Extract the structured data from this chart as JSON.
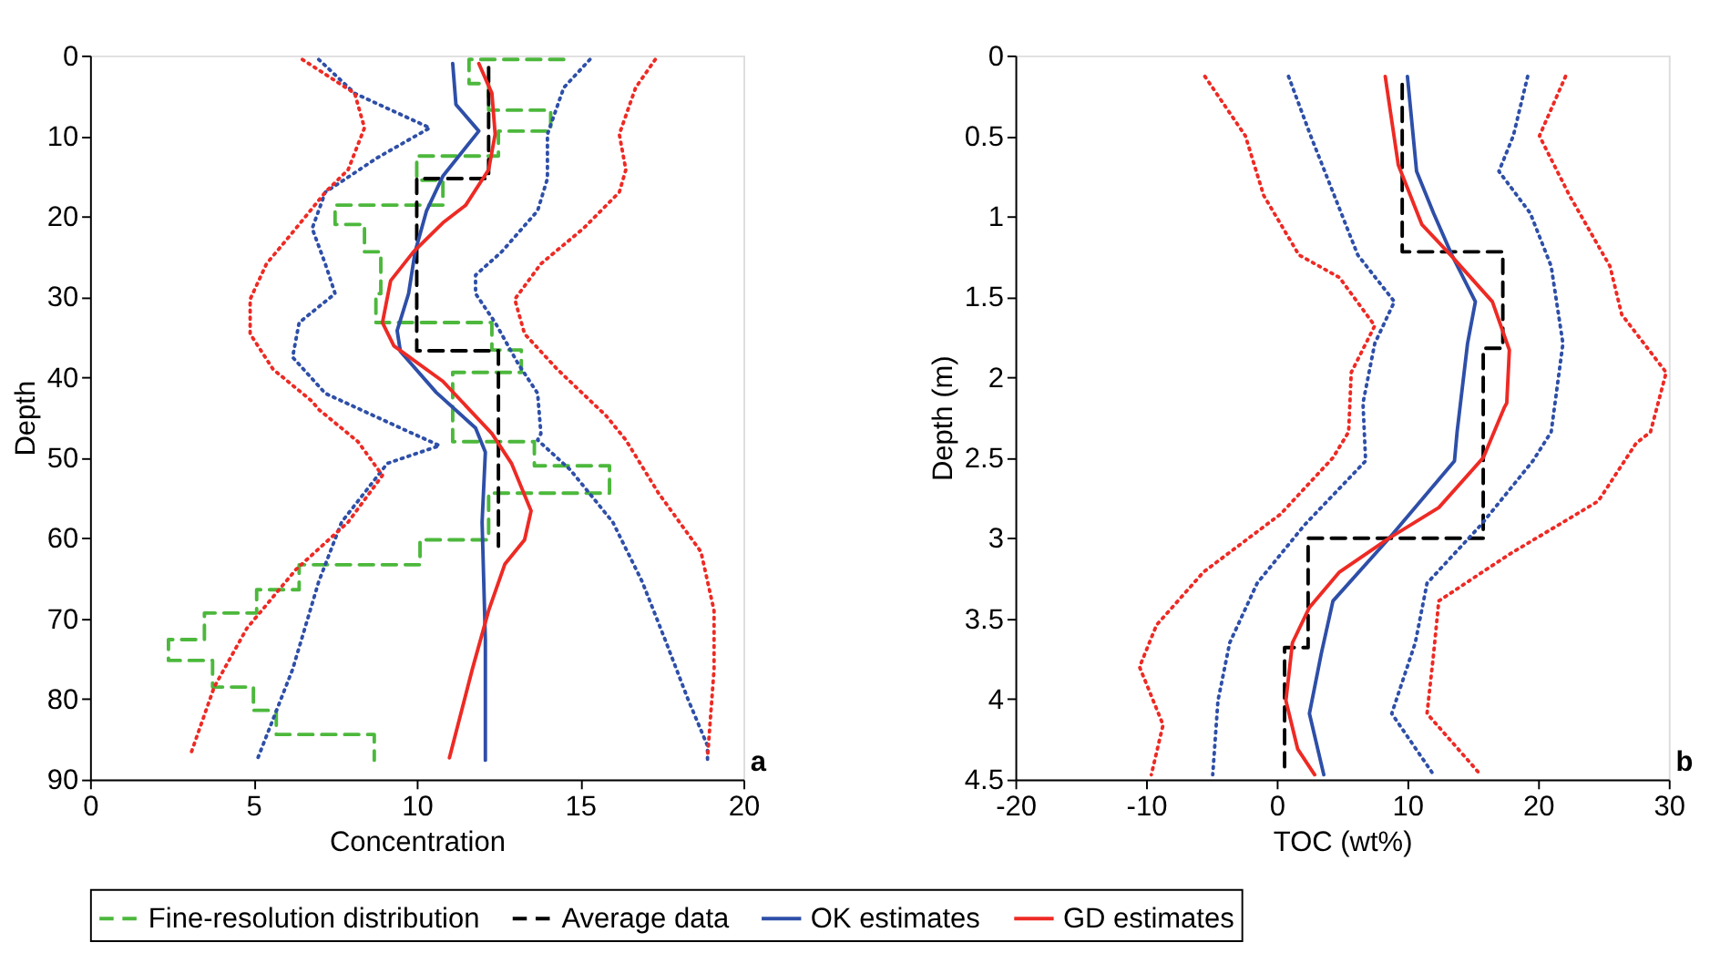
{
  "chart_data": [
    {
      "type": "line",
      "xlabel": "Concentration",
      "ylabel": "Depth",
      "xlim": [
        0,
        20
      ],
      "ylim": [
        90,
        0
      ],
      "xticks": [
        0,
        5,
        10,
        15,
        20
      ],
      "yticks": [
        0,
        10,
        20,
        30,
        40,
        50,
        60,
        70,
        80,
        90
      ],
      "grid": false,
      "legend": "bottom",
      "annotations": [
        "a"
      ],
      "series": [
        {
          "name": "Fine-resolution distribution",
          "color": "#4cb83c",
          "line_style": "dashed",
          "x": [
            14.5,
            11.6,
            11.6,
            12.2,
            12.2,
            14.1,
            14.1,
            12.5,
            12.5,
            10.0,
            10.0,
            10.8,
            10.8,
            7.5,
            7.5,
            8.4,
            8.4,
            8.9,
            8.9,
            8.75,
            8.75,
            12.3,
            12.3,
            13.2,
            13.2,
            11.1,
            11.1,
            11.5,
            11.5,
            13.6,
            13.6,
            15.9,
            15.9,
            12.2,
            12.2,
            10.1,
            10.1,
            6.4,
            6.4,
            5.1,
            5.1,
            3.5,
            3.5,
            2.4,
            2.4,
            3.75,
            3.75,
            5.0,
            5.0,
            5.7,
            5.7,
            8.7,
            8.7
          ],
          "values": [
            0.5,
            0.5,
            3.5,
            3.5,
            6.8,
            6.8,
            9.4,
            9.4,
            12.5,
            12.5,
            15.5,
            15.5,
            18.6,
            18.6,
            21.0,
            21.0,
            24.4,
            24.4,
            29.6,
            29.6,
            33.2,
            33.2,
            36.6,
            36.6,
            39.4,
            39.4,
            48.0,
            48.0,
            48.0,
            48.0,
            51.0,
            51.0,
            54.4,
            54.4,
            60.2,
            60.2,
            63.3,
            63.3,
            66.4,
            66.4,
            69.3,
            69.3,
            72.6,
            72.6,
            75.2,
            75.2,
            78.5,
            78.5,
            81.4,
            81.4,
            84.4,
            84.4,
            87.6
          ]
        },
        {
          "name": "Average data",
          "color": "#000000",
          "line_style": "dashed",
          "x": [
            12.2,
            12.2,
            10.0,
            10.0,
            12.5,
            12.5
          ],
          "values": [
            1.5,
            15.3,
            15.3,
            36.7,
            36.7,
            61
          ]
        },
        {
          "name": "OK estimates",
          "color": "#2e4fa8",
          "line_style": "solid",
          "x": [
            11.1,
            11.2,
            11.9,
            10.8,
            10.3,
            9.95,
            9.75,
            9.4,
            9.5,
            10.6,
            11.8,
            12.1,
            12.0,
            12.1,
            12.1
          ],
          "values": [
            1,
            6.1,
            9.4,
            15,
            19.3,
            24.4,
            29.6,
            34.2,
            36.8,
            41.9,
            46.3,
            49.3,
            58,
            72.6,
            87.6
          ]
        },
        {
          "name": "GD estimates",
          "color": "#ee2a24",
          "line_style": "solid",
          "x": [
            11.9,
            12.3,
            12.4,
            12.2,
            11.5,
            10.8,
            9.9,
            9.2,
            8.95,
            9.3,
            10.8,
            12.3,
            12.9,
            13.5,
            13.3,
            12.7,
            12.2,
            11.7,
            11.0
          ],
          "values": [
            1,
            4.7,
            9.8,
            14.2,
            18.6,
            20.8,
            24.4,
            28,
            33.2,
            36.1,
            40.5,
            47,
            50.7,
            56.6,
            60.2,
            63.2,
            69,
            76.3,
            87.3
          ]
        },
        {
          "color": "#2e4fa8",
          "line_style": "dotted",
          "x": [
            7.0,
            8.1,
            10.4,
            8.8,
            7.2,
            6.8,
            7.2,
            7.5,
            6.4,
            6.2,
            7.2,
            9.5,
            10.7,
            9.1,
            7.7,
            7.0,
            6.2,
            5.1
          ],
          "values": [
            0.5,
            4.7,
            9,
            12.7,
            17,
            21.5,
            25.9,
            29.6,
            33.2,
            37.5,
            42,
            46.3,
            48.5,
            50.7,
            58,
            65.4,
            76.3,
            87.7
          ]
        },
        {
          "color": "#2e4fa8",
          "line_style": "dotted",
          "x": [
            15.3,
            14.5,
            14.0,
            14.0,
            13.7,
            12.6,
            11.8,
            11.8,
            12.4,
            13.1,
            13.7,
            13.8,
            13.7,
            14.7,
            16.0,
            16.9,
            17.6,
            18.3,
            18.9,
            18.9
          ],
          "values": [
            0.5,
            4,
            9.8,
            15.3,
            19.3,
            24.4,
            27.3,
            29.6,
            33.2,
            38.3,
            42,
            47,
            47.8,
            51.5,
            58,
            65.4,
            72.6,
            80,
            85.8,
            87.7
          ]
        },
        {
          "color": "#ee2a24",
          "line_style": "dotted",
          "x": [
            6.5,
            8.1,
            8.4,
            7.9,
            7.2,
            6.3,
            5.4,
            4.9,
            4.9,
            5.6,
            6.8,
            7.0,
            8.2,
            8.95,
            7.9,
            6.3,
            4.8,
            3.8,
            3.1
          ],
          "values": [
            0.5,
            4.7,
            9,
            14.2,
            17,
            21.5,
            25.9,
            30.3,
            34.6,
            39,
            43,
            44,
            48,
            52.2,
            58,
            63.9,
            71.2,
            78.5,
            86.6
          ]
        },
        {
          "color": "#ee2a24",
          "line_style": "dotted",
          "x": [
            17.3,
            16.7,
            16.2,
            16.4,
            16.2,
            15.1,
            13.8,
            13.0,
            13.3,
            14.3,
            15.8,
            16.4,
            17.4,
            18.7,
            19.1,
            19.1,
            18.9
          ],
          "values": [
            0.5,
            4,
            9.8,
            14.2,
            17,
            21.5,
            25.9,
            30.3,
            34.6,
            39,
            44.8,
            47.8,
            54.4,
            61.7,
            69,
            76.3,
            87.3
          ]
        }
      ]
    },
    {
      "type": "line",
      "xlabel": "TOC (wt%)",
      "ylabel": "Depth (m)",
      "xlim": [
        -20,
        30
      ],
      "ylim": [
        4.5,
        0
      ],
      "xticks": [
        -20,
        -10,
        0,
        10,
        20,
        30
      ],
      "yticks": [
        0,
        0.5,
        1,
        1.5,
        2,
        2.5,
        3,
        3.5,
        4,
        4.5
      ],
      "grid": false,
      "legend": "bottom",
      "annotations": [
        "b"
      ],
      "series": [
        {
          "name": "Average data",
          "color": "#000000",
          "line_style": "dashed",
          "x": [
            9.6,
            9.6,
            17.3,
            17.3,
            15.8,
            15.8,
            2.4,
            2.4,
            0.6,
            0.6
          ],
          "values": [
            0.18,
            1.22,
            1.22,
            1.82,
            1.82,
            3.0,
            3.0,
            3.68,
            3.68,
            4.42
          ]
        },
        {
          "name": "OK estimates",
          "color": "#2e4fa8",
          "line_style": "solid",
          "x": [
            10.0,
            10.7,
            12.0,
            13.4,
            15.2,
            14.6,
            13.8,
            13.6,
            8.6,
            4.3,
            3.4,
            2.5,
            3.6
          ],
          "values": [
            0.13,
            0.72,
            0.98,
            1.24,
            1.53,
            1.79,
            2.34,
            2.52,
            3.0,
            3.39,
            3.72,
            4.09,
            4.47
          ]
        },
        {
          "name": "GD estimates",
          "color": "#ee2a24",
          "line_style": "solid",
          "x": [
            8.3,
            9.3,
            11.1,
            13.3,
            16.5,
            17.8,
            17.6,
            17.4,
            15.8,
            12.4,
            8.6,
            4.8,
            2.5,
            1.2,
            0.7,
            1.6,
            2.9
          ],
          "values": [
            0.13,
            0.68,
            1.05,
            1.24,
            1.53,
            1.83,
            2.16,
            2.19,
            2.5,
            2.81,
            3.0,
            3.21,
            3.43,
            3.65,
            4.01,
            4.31,
            4.47
          ]
        },
        {
          "color": "#2e4fa8",
          "line_style": "dotted",
          "x": [
            0.9,
            2.6,
            4.4,
            6.2,
            9.0,
            7.5,
            6.6,
            6.8,
            2.1,
            -1.5,
            -3.6,
            -4.5,
            -4.9
          ],
          "values": [
            0.13,
            0.5,
            0.87,
            1.24,
            1.53,
            1.79,
            2.16,
            2.52,
            2.92,
            3.28,
            3.65,
            4.01,
            4.47
          ]
        },
        {
          "color": "#2e4fa8",
          "line_style": "dotted",
          "x": [
            19.2,
            18.1,
            17.0,
            19.4,
            21.0,
            21.9,
            21.0,
            19.6,
            15.6,
            11.5,
            10.6,
            8.8,
            12.0
          ],
          "values": [
            0.13,
            0.5,
            0.72,
            0.98,
            1.31,
            1.79,
            2.34,
            2.52,
            2.92,
            3.28,
            3.65,
            4.09,
            4.47
          ]
        },
        {
          "color": "#ee2a24",
          "line_style": "dotted",
          "x": [
            -5.5,
            -2.4,
            -1.0,
            1.7,
            4.8,
            7.5,
            5.7,
            5.5,
            4.3,
            0.3,
            -5.6,
            -9.2,
            -10.5,
            -8.7,
            -9.6
          ],
          "values": [
            0.13,
            0.5,
            0.87,
            1.24,
            1.38,
            1.68,
            1.97,
            2.34,
            2.5,
            2.85,
            3.21,
            3.54,
            3.8,
            4.16,
            4.47
          ]
        },
        {
          "color": "#ee2a24",
          "line_style": "dotted",
          "x": [
            22.1,
            20.1,
            22.4,
            25.5,
            26.4,
            29.8,
            28.6,
            27.5,
            24.6,
            17.8,
            12.4,
            12.0,
            11.5,
            15.6
          ],
          "values": [
            0.13,
            0.5,
            0.87,
            1.31,
            1.61,
            1.97,
            2.34,
            2.41,
            2.77,
            3.1,
            3.39,
            3.72,
            4.09,
            4.47
          ]
        }
      ]
    }
  ]
}
